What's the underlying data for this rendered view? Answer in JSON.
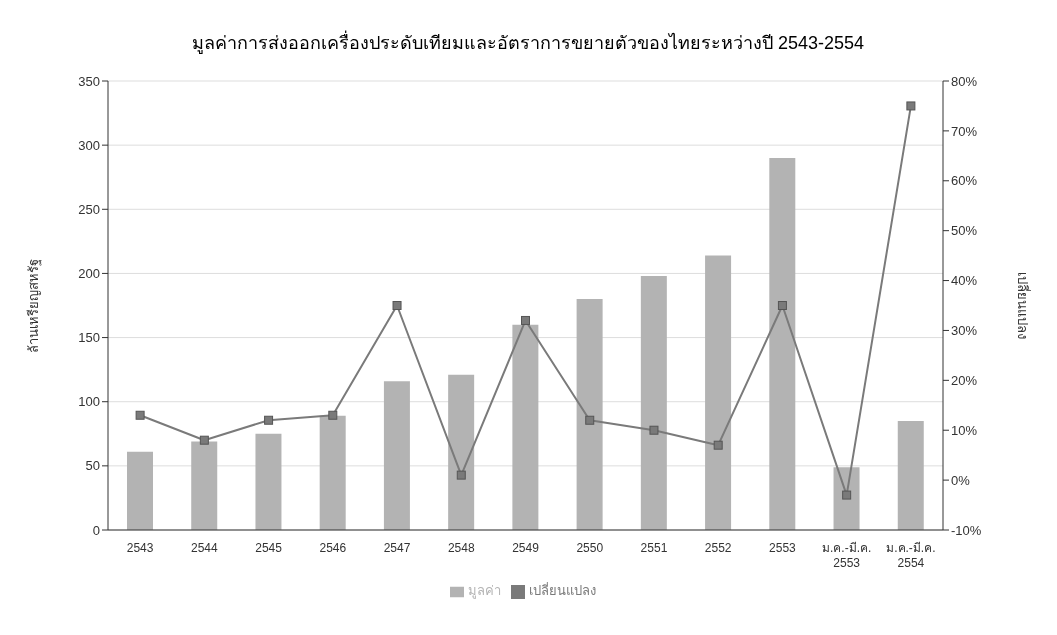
{
  "chart_data": {
    "type": "bar",
    "title": "มูลค่าการส่งออกเครื่องประดับเทียมและอัตราการขยายตัวของไทยระหว่างปี 2543-2554",
    "ylabel": "ล้านเหรียญสหรัฐ",
    "y2label": "เปลี่ยนแปลง",
    "categories": [
      "2543",
      "2544",
      "2545",
      "2546",
      "2547",
      "2548",
      "2549",
      "2550",
      "2551",
      "2552",
      "2553",
      "ม.ค.-มี.ค.\n2553",
      "ม.ค.-มี.ค.\n2554"
    ],
    "series": [
      {
        "name": "มูลค่า",
        "color": "#b3b3b3",
        "values": [
          61,
          69,
          75,
          89,
          116,
          121,
          160,
          180,
          198,
          214,
          290,
          49,
          85
        ]
      },
      {
        "name": "เปลี่ยนแปลง",
        "type": "line",
        "axis": "y2",
        "color": "#7a7a7a",
        "values": [
          13,
          8,
          12,
          13,
          35,
          1,
          32,
          12,
          10,
          7,
          35,
          -3,
          75
        ]
      }
    ],
    "ylim": [
      0,
      350
    ],
    "yticks": [
      0,
      50,
      100,
      150,
      200,
      250,
      300,
      350
    ],
    "y2lim": [
      -10,
      80
    ],
    "y2ticks": [
      {
        "value": -10,
        "label": "-10%"
      },
      {
        "value": 0,
        "label": "0%"
      },
      {
        "value": 10,
        "label": "10%"
      },
      {
        "value": 20,
        "label": "20%"
      },
      {
        "value": 30,
        "label": "30%"
      },
      {
        "value": 40,
        "label": "40%"
      },
      {
        "value": 50,
        "label": "50%"
      },
      {
        "value": 60,
        "label": "60%"
      },
      {
        "value": 70,
        "label": "70%"
      },
      {
        "value": 80,
        "label": "80%"
      }
    ],
    "grid": "y",
    "legend": "bottom",
    "marker": "square",
    "line_style": "solid"
  }
}
